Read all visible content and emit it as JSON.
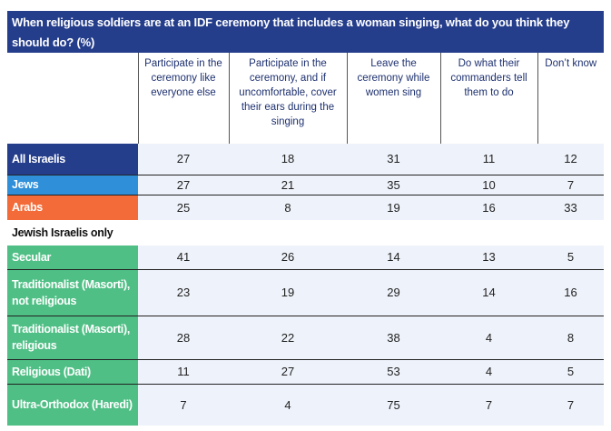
{
  "chart_data": {
    "type": "table",
    "title": "When religious soldiers are at an IDF ceremony that includes a woman singing, what do you think they should do? (%)",
    "columns": [
      "Participate in the ceremony like everyone else",
      "Participate in the ceremony, and if uncomfortable, cover their ears during the singing",
      "Leave the ceremony while women sing",
      "Do what their commanders tell them to do",
      "Don’t know"
    ],
    "groups": [
      {
        "rows": [
          {
            "label": "All Israelis",
            "color": "#253E8C",
            "values": [
              27,
              18,
              31,
              11,
              12
            ]
          },
          {
            "label": "Jews",
            "color": "#2F8FD9",
            "values": [
              27,
              21,
              35,
              10,
              7
            ]
          },
          {
            "label": "Arabs",
            "color": "#F26B38",
            "values": [
              25,
              8,
              19,
              16,
              33
            ]
          }
        ]
      },
      {
        "heading": "Jewish Israelis only",
        "rows": [
          {
            "label": "Secular",
            "color": "#4FBF85",
            "values": [
              41,
              26,
              14,
              13,
              5
            ]
          },
          {
            "label": "Traditionalist (Masorti), not religious",
            "color": "#4FBF85",
            "values": [
              23,
              19,
              29,
              14,
              16
            ]
          },
          {
            "label": "Traditionalist (Masorti), religious",
            "color": "#4FBF85",
            "values": [
              28,
              22,
              38,
              4,
              8
            ]
          },
          {
            "label": "Religious (Dati)",
            "color": "#4FBF85",
            "values": [
              11,
              27,
              53,
              4,
              5
            ]
          },
          {
            "label": "Ultra-Orthodox (Haredi)",
            "color": "#4FBF85",
            "values": [
              7,
              4,
              75,
              7,
              7
            ]
          }
        ]
      }
    ]
  }
}
